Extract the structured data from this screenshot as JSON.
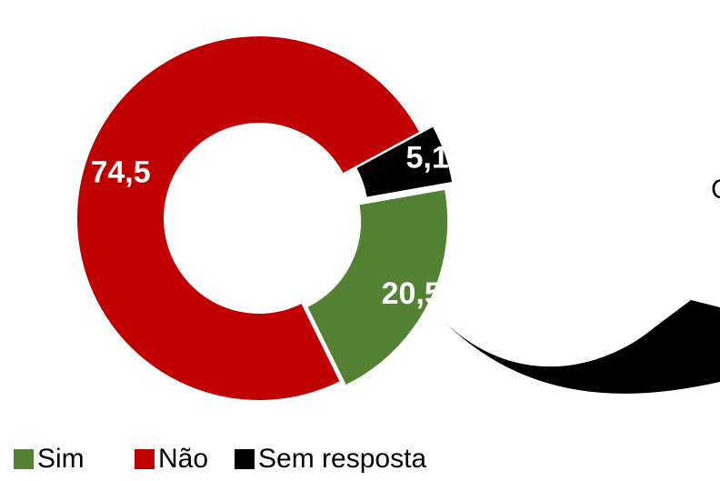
{
  "chart_data": {
    "type": "donut",
    "categories": [
      "Sim",
      "Não",
      "Sem resposta"
    ],
    "values": [
      20.5,
      74.5,
      5.1
    ],
    "value_labels": [
      "20,5",
      "74,5",
      "5,1"
    ],
    "colors": [
      "#548235",
      "#c00000",
      "#000000"
    ],
    "legend": "bottom",
    "annotation": "C"
  }
}
